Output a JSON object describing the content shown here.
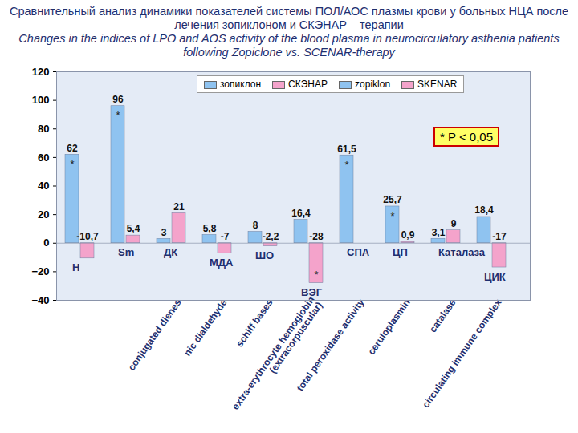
{
  "chart_data": {
    "type": "bar",
    "title": "Сравнительный анализ динамики показателей системы ПОЛ/АОС плазмы крови у больных НЦА после лечения зопиклоном и СКЭНАР – терапии",
    "subtitle": "Changes in the indices of LPO and AOS activity of the blood plasma in neurocirculatory asthenia patients following Zopiclone vs. SCENAR-therapy",
    "categories": [
      "Н",
      "Sm",
      "ДК",
      "МДА",
      "ШО",
      "ВЭГ",
      "СПА",
      "ЦП",
      "Каталаза",
      "ЦИК"
    ],
    "category_notes": [
      null,
      null,
      "conjugated dienes",
      "nic dialdehyde",
      "schiff bases",
      "extra-erythrocyte hemoglobin\n(extracorpuscular)",
      "total peroxidase activity",
      "ceruloplasmin",
      "catalase",
      "circulating immune complex"
    ],
    "series": [
      {
        "name": "зопиклон",
        "alt_name": "zopiklon",
        "color": "#8fc3f0",
        "values": [
          62,
          96,
          3,
          5.8,
          8,
          16.4,
          61.5,
          25.7,
          3.1,
          18.4
        ],
        "value_labels": [
          "62",
          "96",
          "3",
          "5,8",
          "8",
          "16,4",
          "61,5",
          "25,7",
          "3,1",
          "18,4"
        ],
        "significance": [
          "*",
          "*",
          null,
          null,
          null,
          null,
          "*",
          "*",
          null,
          null
        ]
      },
      {
        "name": "СКЭНАР",
        "alt_name": "SKENAR",
        "color": "#f4a3cb",
        "values": [
          -10.7,
          5.4,
          21,
          -7,
          -2.2,
          -28,
          null,
          0.9,
          9,
          -17
        ],
        "value_labels": [
          "-10,7",
          "5,4",
          "21",
          "-7",
          "-2,2",
          "-28",
          null,
          "0,9",
          "9",
          "-17"
        ],
        "significance": [
          null,
          null,
          null,
          null,
          null,
          "*",
          null,
          null,
          null,
          null
        ]
      }
    ],
    "significance_note": "* P < 0,05",
    "ylim": [
      -40,
      120
    ],
    "yticks": [
      -40,
      -20,
      0,
      20,
      40,
      60,
      80,
      100,
      120
    ],
    "grid": false,
    "legend": "top-right",
    "data_labels": true
  }
}
